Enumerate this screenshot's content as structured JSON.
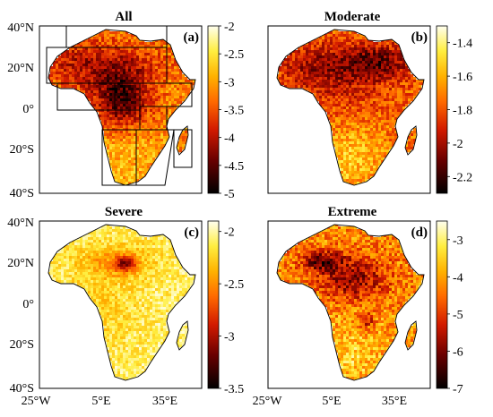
{
  "panels": [
    {
      "title": "All",
      "label": "(a)",
      "colorbar": [
        "-2",
        "-2.5",
        "-3",
        "-3.5",
        "-4",
        "-4.5",
        "-5"
      ],
      "cmin": -5,
      "cmax": -2,
      "has_regions": true
    },
    {
      "title": "Moderate",
      "label": "(b)",
      "colorbar": [
        "-1.4",
        "-1.6",
        "-1.8",
        "-2",
        "-2.2"
      ],
      "cmin": -2.3,
      "cmax": -1.3,
      "has_regions": false
    },
    {
      "title": "Severe",
      "label": "(c)",
      "colorbar": [
        "-2",
        "-2.5",
        "-3",
        "-3.5"
      ],
      "cmin": -3.5,
      "cmax": -1.9,
      "has_regions": false
    },
    {
      "title": "Extreme",
      "label": "(d)",
      "colorbar": [
        "-3",
        "-4",
        "-5",
        "-6",
        "-7"
      ],
      "cmin": -7,
      "cmax": -2.5,
      "has_regions": false
    }
  ],
  "lat_labels": [
    "40°N",
    "20°N",
    "0°",
    "20°S",
    "40°S"
  ],
  "lon_labels": [
    "25°W",
    "5°E",
    "35°E"
  ],
  "colormap": "hot (black-red-yellow-white)"
}
